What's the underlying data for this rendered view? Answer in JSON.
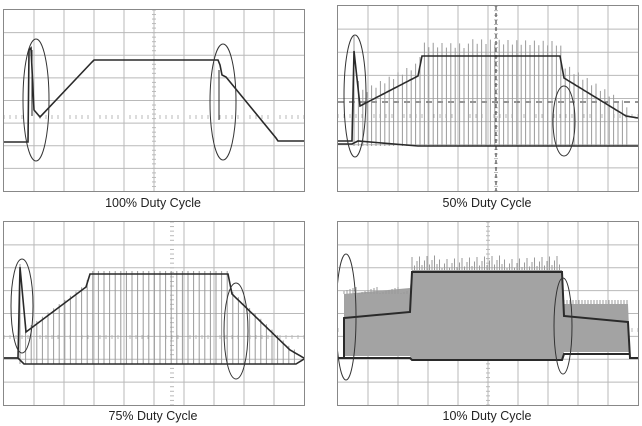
{
  "colors": {
    "grid": "#b9b9b9",
    "trace": "#2a2a2a",
    "ripple": "#9a9a9a",
    "fill": "#a3a3a3",
    "annotation": "#333333"
  },
  "panels": [
    {
      "id": "p100",
      "caption": "100% Duty Cycle",
      "duty": 1.0
    },
    {
      "id": "p50",
      "caption": "50% Duty Cycle",
      "duty": 0.5
    },
    {
      "id": "p75",
      "caption": "75% Duty Cycle",
      "duty": 0.75
    },
    {
      "id": "p10",
      "caption": "10% Duty Cycle",
      "duty": 0.1
    }
  ]
}
